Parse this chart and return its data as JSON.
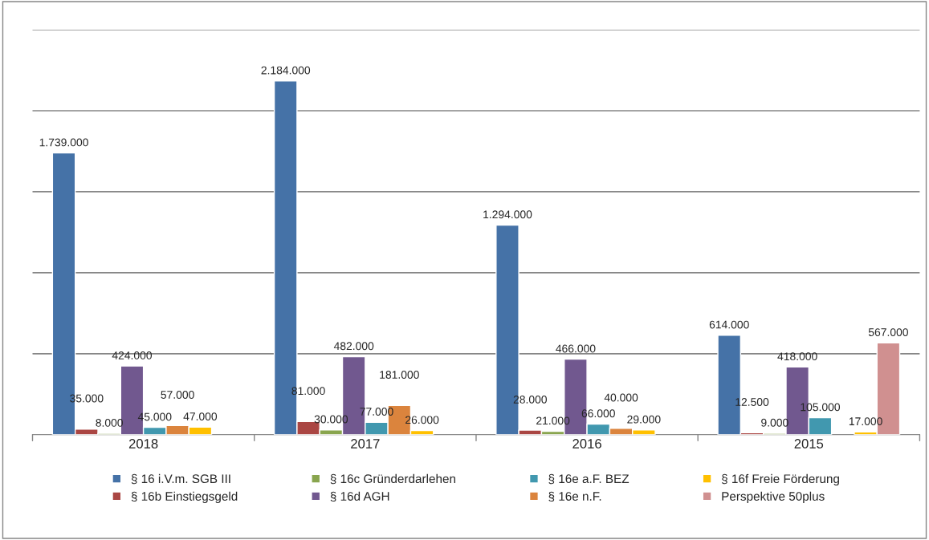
{
  "chart_data": {
    "type": "bar",
    "categories": [
      "2018",
      "2017",
      "2016",
      "2015"
    ],
    "series": [
      {
        "name": "§ 16 i.V.m. SGB III",
        "color": "#4572a7",
        "values": [
          1739000,
          2184000,
          1294000,
          614000
        ],
        "value_labels": [
          "1.739.000",
          "2.184.000",
          "1.294.000",
          "614.000"
        ]
      },
      {
        "name": "§ 16b Einstiegsgeld",
        "color": "#aa4643",
        "values": [
          35000,
          81000,
          28000,
          12500
        ],
        "value_labels": [
          "35.000",
          "81.000",
          "28.000",
          "12.500"
        ]
      },
      {
        "name": "§ 16c Gründerdarlehen",
        "color": "#89a54e",
        "values": [
          8000,
          30000,
          21000,
          9000
        ],
        "value_labels": [
          "8.000",
          "30.000",
          "21.000",
          "9.000"
        ]
      },
      {
        "name": "§ 16d AGH",
        "color": "#71588f",
        "values": [
          424000,
          482000,
          466000,
          418000
        ],
        "value_labels": [
          "424.000",
          "482.000",
          "466.000",
          "418.000"
        ]
      },
      {
        "name": "§ 16e a.F. BEZ",
        "color": "#4198af",
        "values": [
          45000,
          77000,
          66000,
          105000
        ],
        "value_labels": [
          "45.000",
          "77.000",
          "66.000",
          "105.000"
        ]
      },
      {
        "name": "§ 16e n.F.",
        "color": "#db843d",
        "values": [
          57000,
          181000,
          40000,
          null
        ],
        "value_labels": [
          "57.000",
          "181.000",
          "40.000",
          null
        ]
      },
      {
        "name": "§ 16f Freie Förderung",
        "color": "#ffc000",
        "values": [
          47000,
          26000,
          29000,
          17000
        ],
        "value_labels": [
          "47.000",
          "26.000",
          "29.000",
          "17.000"
        ]
      },
      {
        "name": "Perspektive 50plus",
        "color": "#d09090",
        "values": [
          null,
          null,
          null,
          567000
        ],
        "value_labels": [
          null,
          null,
          null,
          "567.000"
        ]
      }
    ],
    "ylim": [
      0,
      2500000
    ],
    "yticks": [
      {
        "value": 0,
        "label": null
      },
      {
        "value": 500000,
        "label": null
      },
      {
        "value": 1000000,
        "label": null
      },
      {
        "value": 1500000,
        "label": null
      },
      {
        "value": 2000000,
        "label": null
      },
      {
        "value": 2500000,
        "label": null
      }
    ],
    "tick_labels": "x",
    "grid": "y",
    "legend": "bottom"
  }
}
